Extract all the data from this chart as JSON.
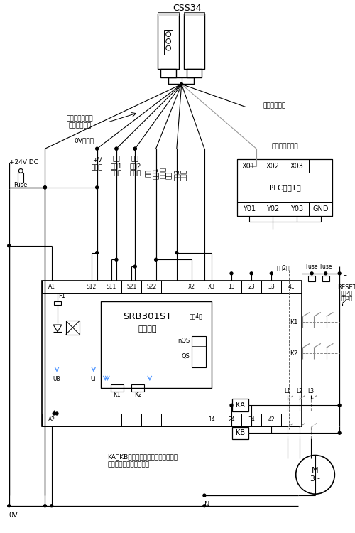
{
  "bg_color": "#ffffff",
  "line_color": "#000000",
  "blue_color": "#5599ff",
  "gray_color": "#999999",
  "labels": {
    "css34": "CSS34",
    "cable_color": "接続ケーブルの\nリード線の色",
    "unused_red": "未使用（赤）",
    "ov_green": "0V（緑）",
    "plus24v": "+24V DC",
    "fuse": "Fuse",
    "plus_v_white": "+V\n（白）",
    "safety_in1": "安全\n入力1\n（茶）",
    "safety_in2": "安全\n入力2\n（桃）",
    "safety_out1": "安全\n出力1\n（黄）",
    "safety_out2": "安全\n出力2\n（青）",
    "diag_out_gray": "診断出力（灰）",
    "plc": "PLC（注1）",
    "x01": "X01",
    "x02": "X02",
    "x03": "X03",
    "y01": "Y01",
    "y02": "Y02",
    "y03": "Y03",
    "gnd": "GND",
    "srb": "SRB301ST",
    "control": "制御回路",
    "nqs": "nQS",
    "qs": "QS",
    "note4": "（注4）",
    "note2": "（注2）",
    "reset": "RESET",
    "reset_note2": "（注2）",
    "reset_note3": "（注3）",
    "a1": "A1",
    "a2": "A2",
    "s12": "S12",
    "s11": "S11",
    "s21": "S21",
    "s22": "S22",
    "x2": "X2",
    "x3": "X3",
    "t13": "13",
    "t23": "23",
    "t33": "33",
    "t41": "41",
    "t14": "14",
    "t24": "24",
    "t34": "34",
    "t42": "42",
    "f1": "F1",
    "ub": "UB",
    "ui": "Ui",
    "k1": "K1",
    "k2": "K2",
    "l_label": "L",
    "ka": "KA",
    "kb": "KB",
    "l1": "L1",
    "l2": "L2",
    "l3": "L3",
    "n_label": "N",
    "ov_bottom": "0V",
    "m3": "M\n3~",
    "note_ka_kb": "KA、KB：強制ガイド式リレーまたは\n　マグネットコンタクタ"
  }
}
